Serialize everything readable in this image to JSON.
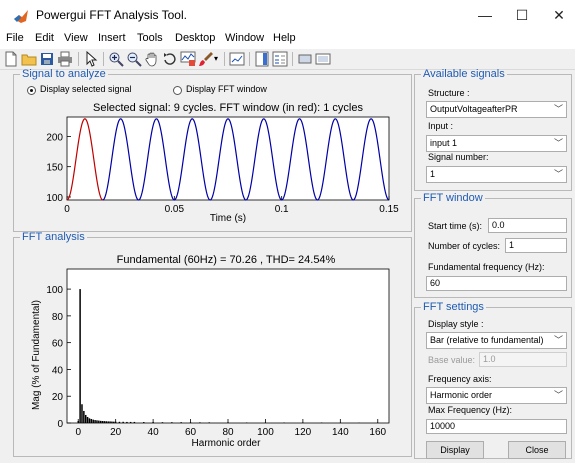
{
  "window": {
    "title": "Powergui FFT Analysis Tool.",
    "controls": {
      "minimize": "—",
      "maximize": "☐",
      "close": "✕"
    }
  },
  "menu": [
    "File",
    "Edit",
    "View",
    "Insert",
    "Tools",
    "Desktop",
    "Window",
    "Help"
  ],
  "toolbar": {
    "icons": [
      "new-file-icon",
      "open-folder-icon",
      "save-icon",
      "print-icon",
      "pointer-icon",
      "zoom-in-icon",
      "zoom-out-icon",
      "pan-hand-icon",
      "rotate-3d-icon",
      "data-cursor-icon",
      "brush-icon",
      "link-plot-icon",
      "colorbar-icon",
      "legend-icon",
      "hide-plot-tools-icon",
      "show-plot-tools-icon"
    ]
  },
  "signal_panel": {
    "legend": "Signal to analyze",
    "radio_display_signal": "Display selected signal",
    "radio_display_fft": "Display FFT window",
    "radio_selected": "display_signal",
    "plot_title": "Selected signal: 9 cycles. FFT window (in red): 1 cycles",
    "xlabel": "Time (s)"
  },
  "fft_panel": {
    "legend": "FFT analysis",
    "plot_title": "Fundamental (60Hz) = 70.26 , THD= 24.54%",
    "xlabel": "Harmonic order",
    "ylabel": "Mag (% of Fundamental)"
  },
  "available_signals": {
    "legend": "Available signals",
    "structure_label": "Structure :",
    "structure_value": "OutputVoltageafterPR",
    "input_label": "Input :",
    "input_value": "input 1",
    "signal_number_label": "Signal number:",
    "signal_number_value": "1"
  },
  "fft_window": {
    "legend": "FFT window",
    "start_time_label": "Start time (s):",
    "start_time_value": "0.0",
    "cycles_label": "Number of cycles:",
    "cycles_value": "1",
    "fundamental_label": "Fundamental frequency (Hz):",
    "fundamental_value": "60"
  },
  "fft_settings": {
    "legend": "FFT settings",
    "display_style_label": "Display style :",
    "display_style_value": "Bar (relative to fundamental)",
    "base_value_label": "Base value:",
    "base_value_value": "1.0",
    "frequency_axis_label": "Frequency axis:",
    "frequency_axis_value": "Harmonic order",
    "max_freq_label": "Max Frequency (Hz):",
    "max_freq_value": "10000"
  },
  "buttons": {
    "display": "Display",
    "close": "Close"
  },
  "colors": {
    "legend_blue": "#1f5bb4",
    "signal_blue": "#0000a8",
    "fft_window_red": "#c00000",
    "bar_black": "#000000"
  },
  "chart_data": [
    {
      "type": "line",
      "title": "Selected signal: 9 cycles. FFT window (in red): 1 cycles",
      "xlabel": "Time (s)",
      "ylabel": "",
      "xlim": [
        0,
        0.15
      ],
      "ylim": [
        95,
        232
      ],
      "xticks": [
        0,
        0.05,
        0.1,
        0.15
      ],
      "xtick_labels": [
        "0",
        "0.05",
        "0.1",
        "0.15"
      ],
      "yticks": [
        100,
        150,
        200
      ],
      "ytick_labels": [
        "100",
        "150",
        "200"
      ],
      "signal": {
        "offset": 162,
        "amplitude": 67,
        "frequency_hz": 60,
        "phase_deg": -90,
        "cycles": 9
      },
      "series": [
        {
          "color": "#c00000",
          "x_range": [
            0,
            0.016667
          ]
        },
        {
          "color": "#0000a8",
          "x_range": [
            0.016667,
            0.15
          ]
        }
      ]
    },
    {
      "type": "bar",
      "title": "Fundamental (60Hz) = 70.26 , THD= 24.54%",
      "xlabel": "Harmonic order",
      "ylabel": "Mag (% of Fundamental)",
      "xlim": [
        -6,
        166
      ],
      "ylim": [
        0,
        115
      ],
      "xticks": [
        0,
        20,
        40,
        60,
        80,
        100,
        120,
        140,
        160
      ],
      "xtick_labels": [
        "0",
        "20",
        "40",
        "60",
        "80",
        "100",
        "120",
        "140",
        "160"
      ],
      "yticks": [
        0,
        20,
        40,
        60,
        80,
        100
      ],
      "ytick_labels": [
        "0",
        "20",
        "40",
        "60",
        "80",
        "100"
      ],
      "harmonics": [
        0,
        1,
        2,
        3,
        4,
        5,
        6,
        7,
        8,
        9,
        10,
        11,
        12,
        13,
        14,
        15,
        16,
        17,
        18,
        19,
        20,
        22,
        24,
        26,
        28,
        30,
        35,
        40,
        45,
        50,
        55,
        60,
        65,
        70,
        80,
        90,
        100,
        110,
        120,
        130,
        140,
        150,
        160
      ],
      "values": [
        1.5,
        100,
        14,
        9,
        6,
        4.5,
        3.5,
        3,
        2.5,
        2.2,
        2,
        1.8,
        1.6,
        1.5,
        1.4,
        1.3,
        1.2,
        1.2,
        1.1,
        1.0,
        1.0,
        0.9,
        0.9,
        0.8,
        0.8,
        0.8,
        0.7,
        0.7,
        0.6,
        0.6,
        0.6,
        0.5,
        0.5,
        0.5,
        0.5,
        0.4,
        0.4,
        0.4,
        0.4,
        0.4,
        0.3,
        0.3,
        0.3
      ]
    }
  ]
}
